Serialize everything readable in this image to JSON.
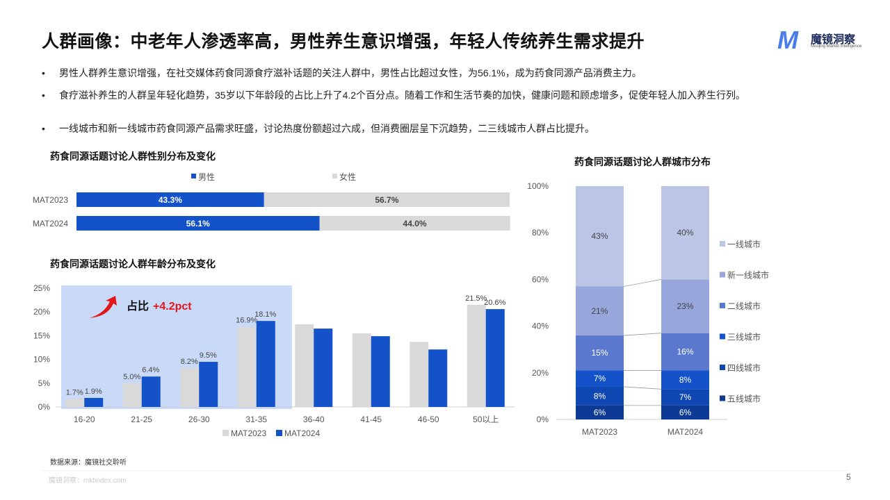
{
  "title": "人群画像：中老年人渗透率高，男性养生意识增强，年轻人传统养生需求提升",
  "logo": {
    "name": "魔镜洞察",
    "sub": "Moojing Market Intelligence",
    "mark": "M"
  },
  "bullets": [
    "男性人群养生意识增强，在社交媒体药食同源食疗滋补话题的关注人群中，男性占比超过女性，为56.1%，成为药食同源产品消费主力。",
    "食疗滋补养生的人群呈年轻化趋势，35岁以下年龄段的占比上升了4.2个百分点。随着工作和生活节奏的加快，健康问题和顾虑增多，促使年轻人加入养生行列。",
    "一线城市和新一线城市药食同源产品需求旺盛，讨论热度份额超过六成，但消费圈层呈下沉趋势，二三线城市人群占比提升。"
  ],
  "chart_data": [
    {
      "type": "bar",
      "orientation": "horizontal-stacked",
      "title": "药食同源话题讨论人群性别分布及变化",
      "categories": [
        "MAT2023",
        "MAT2024"
      ],
      "series": [
        {
          "name": "男性",
          "values": [
            43.3,
            56.1
          ],
          "labels": [
            "43.3%",
            "56.1%"
          ],
          "color": "#1352c8"
        },
        {
          "name": "女性",
          "values": [
            56.7,
            44.0
          ],
          "labels": [
            "56.7%",
            "44.0%"
          ],
          "color": "#d9d9d9"
        }
      ],
      "legend": "top"
    },
    {
      "type": "bar",
      "title": "药食同源话题讨论人群年龄分布及变化",
      "categories": [
        "16-20",
        "21-25",
        "26-30",
        "31-35",
        "36-40",
        "41-45",
        "46-50",
        "50以上"
      ],
      "series": [
        {
          "name": "MAT2023",
          "values": [
            1.7,
            5.0,
            8.2,
            16.9,
            17.4,
            15.5,
            13.7,
            21.5
          ],
          "labels": [
            "1.7%",
            "5.0%",
            "8.2%",
            "16.9%",
            "",
            "",
            "",
            "21.5%"
          ],
          "color": "#d9d9d9"
        },
        {
          "name": "MAT2024",
          "values": [
            1.9,
            6.4,
            9.5,
            18.1,
            16.5,
            14.9,
            12.1,
            20.6
          ],
          "labels": [
            "1.9%",
            "6.4%",
            "9.5%",
            "18.1%",
            "",
            "",
            "",
            "20.6%"
          ],
          "color": "#1352c8"
        }
      ],
      "yticks": [
        "0%",
        "5%",
        "10%",
        "15%",
        "20%",
        "25%"
      ],
      "ylim": [
        0,
        25
      ],
      "legend": "bottom",
      "annotation": {
        "prefix": "占比",
        "value": "+4.2pct",
        "highlight_range": [
          "16-20",
          "31-35"
        ]
      }
    },
    {
      "type": "bar",
      "orientation": "vertical-stacked-100",
      "title": "药食同源话题讨论人群城市分布",
      "categories": [
        "MAT2023",
        "MAT2024"
      ],
      "series": [
        {
          "name": "五线城市",
          "values": [
            6,
            6
          ],
          "color": "#0c3a94"
        },
        {
          "name": "四线城市",
          "values": [
            8,
            7
          ],
          "color": "#0f47b3"
        },
        {
          "name": "三线城市",
          "values": [
            7,
            8
          ],
          "color": "#1352c8"
        },
        {
          "name": "二线城市",
          "values": [
            15,
            16
          ],
          "color": "#5b78cf"
        },
        {
          "name": "新一线城市",
          "values": [
            21,
            23
          ],
          "color": "#97a6db"
        },
        {
          "name": "一线城市",
          "values": [
            43,
            40
          ],
          "color": "#bcc5e6"
        }
      ],
      "yticks": [
        "0%",
        "20%",
        "40%",
        "60%",
        "80%",
        "100%"
      ],
      "ylim": [
        0,
        100
      ],
      "legend": "right"
    }
  ],
  "footer": {
    "source": "数据来源：魔镜社交聆听",
    "watermark": "魔镜洞察：mktindex.com",
    "page": "5"
  }
}
